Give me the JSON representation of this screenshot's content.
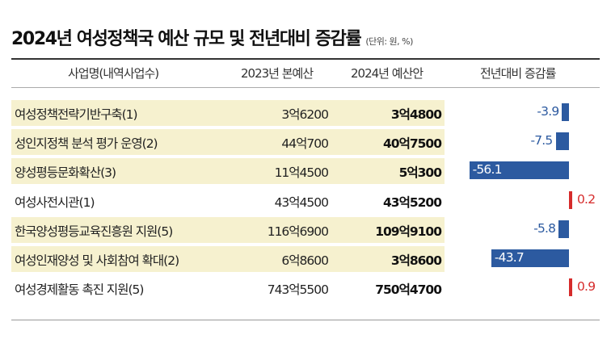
{
  "title": "2024년 여성정책국 예산 규모 및 전년대비 증감률",
  "unit": "(단위: 원, %)",
  "headers": {
    "name": "사업명(내역사업수)",
    "y2023": "2023년 본예산",
    "y2024": "2024년 예산안",
    "change": "전년대비 증감률"
  },
  "colors": {
    "negative": "#2c5aa0",
    "positive": "#d62b2b",
    "highlight": "#f6f1cf"
  },
  "chart_data": {
    "type": "bar",
    "categories": [
      "여성정책전략기반구축(1)",
      "성인지정책 분석 평가 운영(2)",
      "양성평등문화확산(3)",
      "여성사전시관(1)",
      "한국양성평등교육진흥원 지원(5)",
      "여성인재양성 및 사회참여 확대(2)",
      "여성경제활동 촉진 지원(5)"
    ],
    "values": [
      -3.9,
      -7.5,
      -56.1,
      0.2,
      -5.8,
      -43.7,
      0.9
    ],
    "labels": [
      "-3.9",
      "-7.5",
      "-56.1",
      "0.2",
      "-5.8",
      "-43.7",
      "0.9"
    ]
  },
  "rows": [
    {
      "name": "여성정책전략기반구축(1)",
      "y2023": "3억6200",
      "y2024": "3억4800",
      "shaded": true
    },
    {
      "name": "성인지정책 분석 평가 운영(2)",
      "y2023": "44억700",
      "y2024": "40억7500",
      "shaded": true
    },
    {
      "name": "양성평등문화확산(3)",
      "y2023": "11억4500",
      "y2024": "5억300",
      "shaded": true
    },
    {
      "name": "여성사전시관(1)",
      "y2023": "43억4500",
      "y2024": "43억5200",
      "shaded": false
    },
    {
      "name": "한국양성평등교육진흥원 지원(5)",
      "y2023": "116억6900",
      "y2024": "109억9100",
      "shaded": true
    },
    {
      "name": "여성인재양성 및 사회참여 확대(2)",
      "y2023": "6억8600",
      "y2024": "3억8600",
      "shaded": true
    },
    {
      "name": "여성경제활동 촉진 지원(5)",
      "y2023": "743억5500",
      "y2024": "750억4700",
      "shaded": false
    }
  ]
}
